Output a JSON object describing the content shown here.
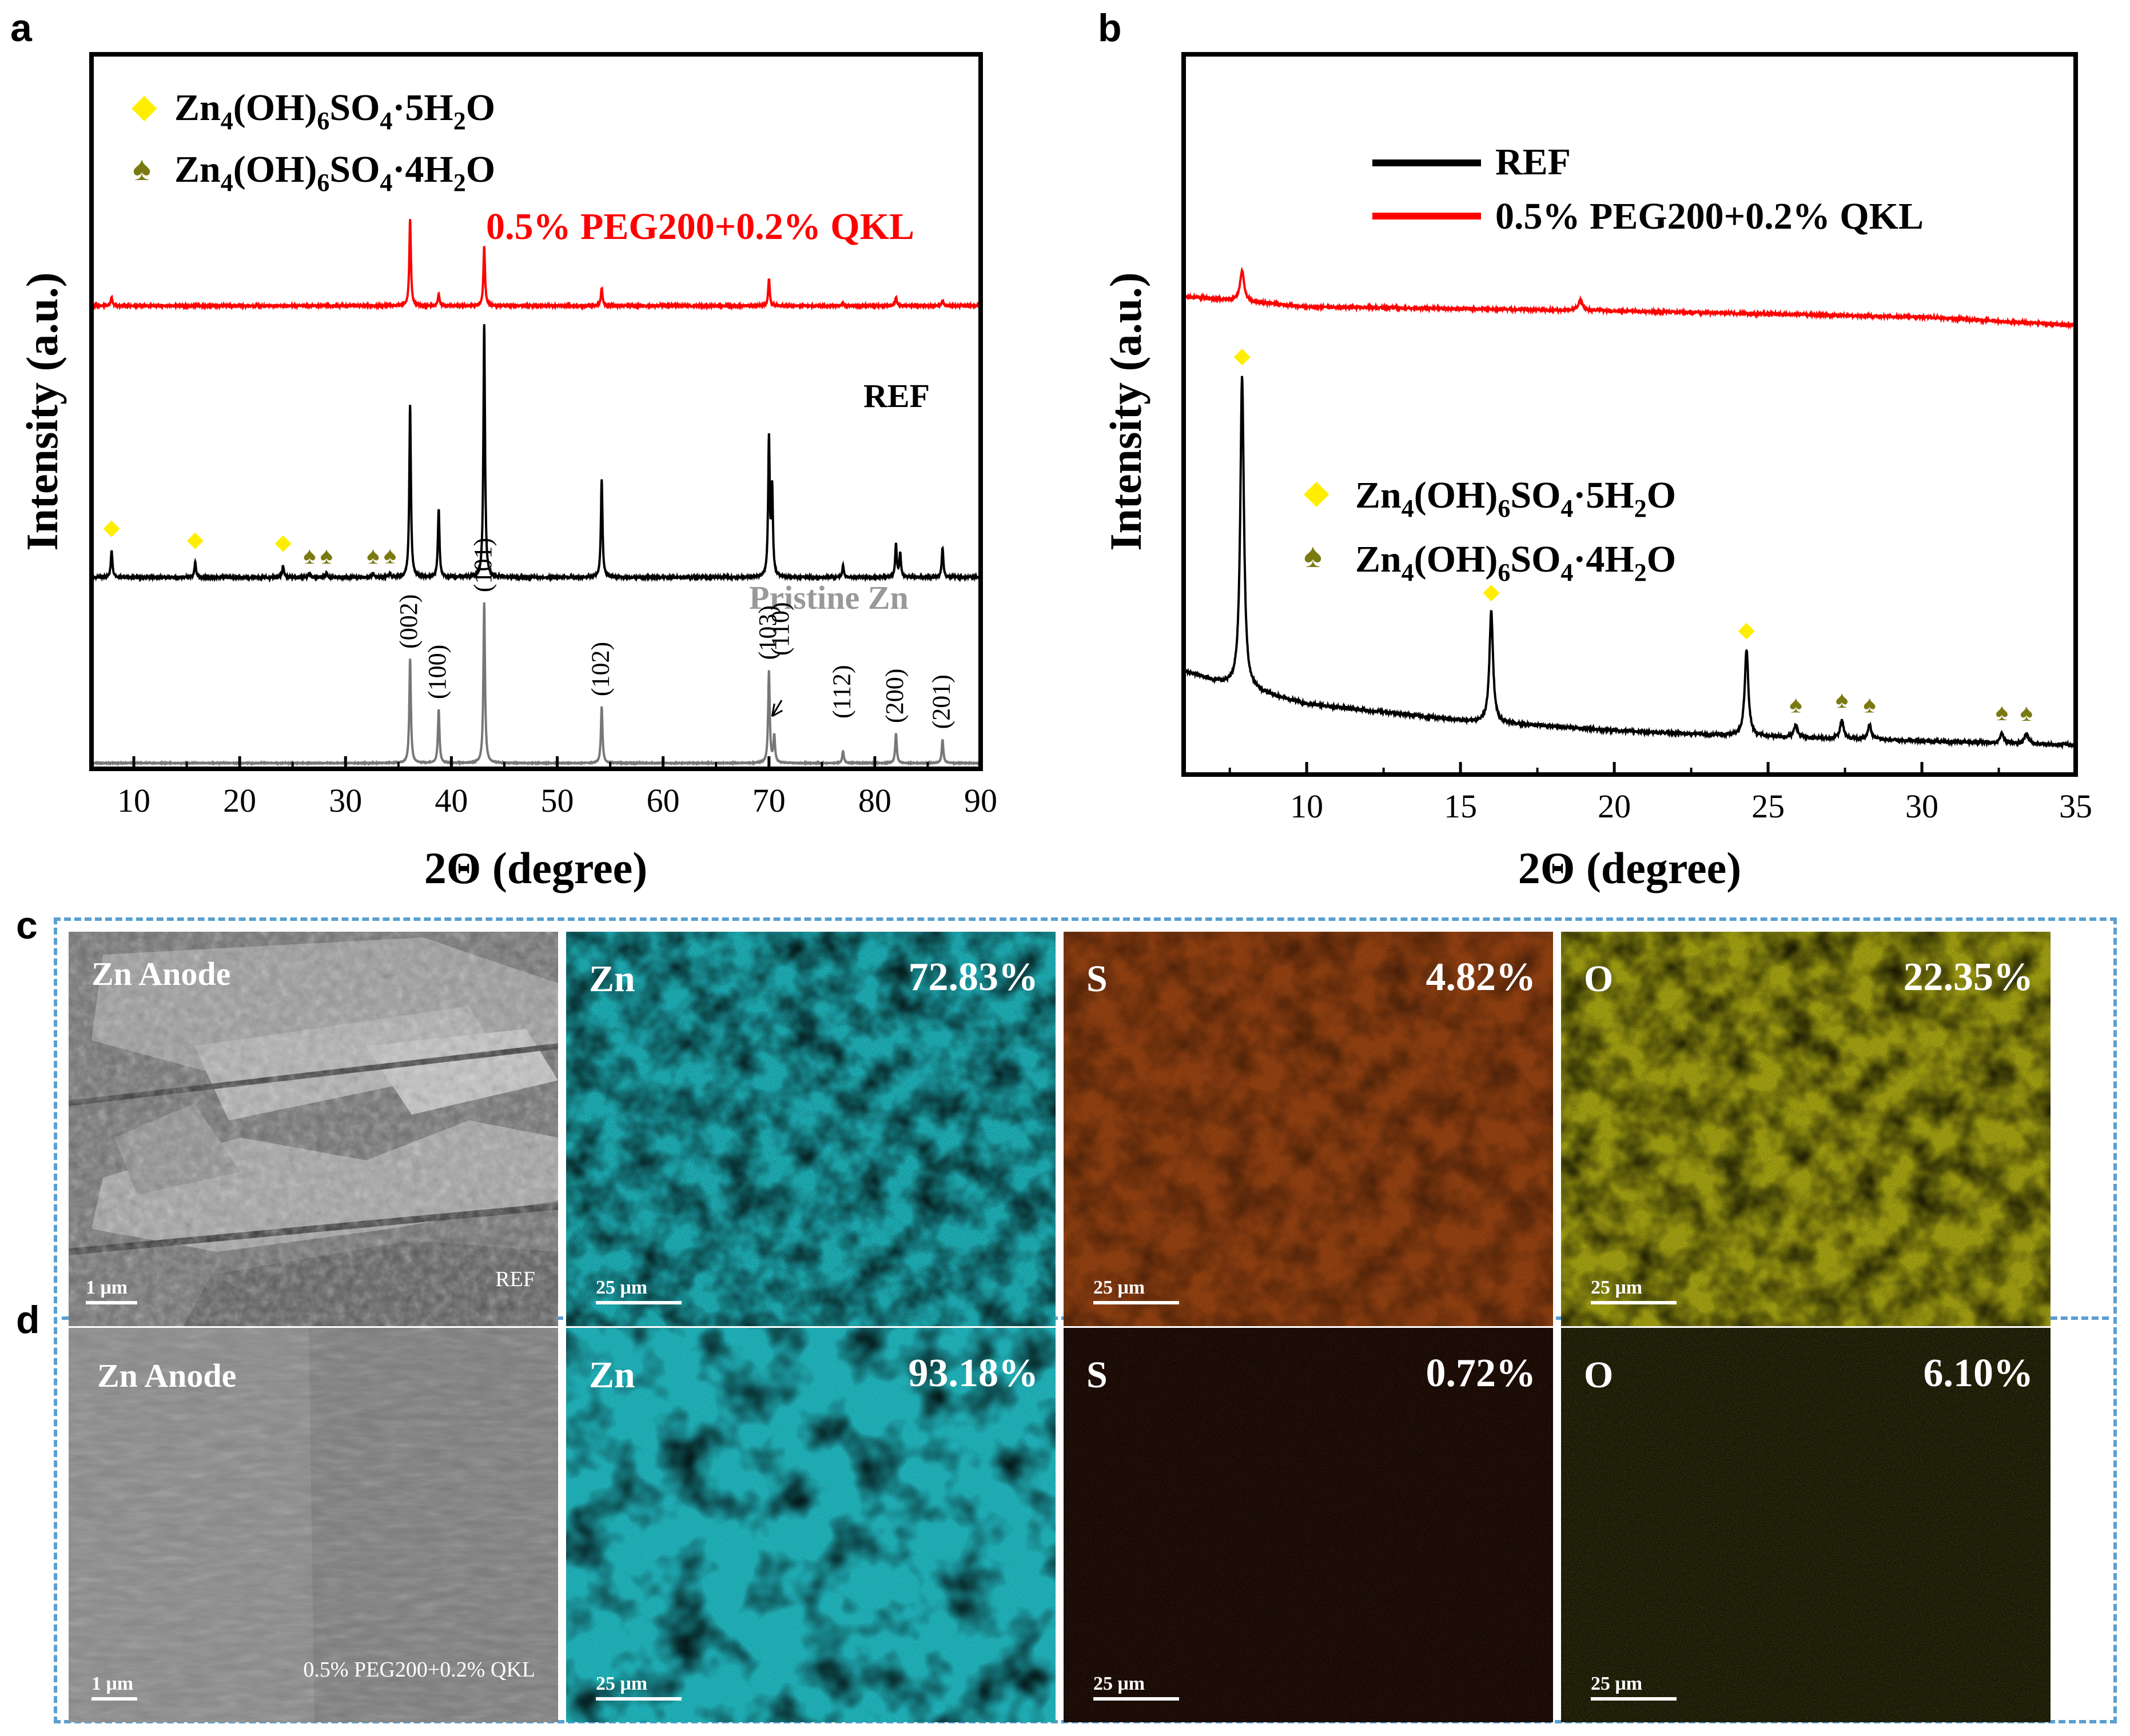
{
  "panel_labels": {
    "a": "a",
    "b": "b",
    "c": "c",
    "d": "d"
  },
  "colors": {
    "ref": "#000000",
    "treated": "#ff0000",
    "pristine": "#777777",
    "pentahydrate_marker": "#ffee00",
    "tetrahydrate_marker": "#7a7a12",
    "zn_map": "#1fb6bd",
    "s_map": "#b9531a",
    "o_map": "#c6c417",
    "frame": "#5a9fd1"
  },
  "chart_data": [
    {
      "id": "a",
      "type": "line",
      "xlabel": "2Θ (degree)",
      "ylabel": "Intensity (a.u.)",
      "xlim": [
        6,
        90
      ],
      "xticks": [
        10,
        20,
        30,
        40,
        50,
        60,
        70,
        80,
        90
      ],
      "legend": [
        {
          "symbol": "diamond",
          "name": "Zn4(OH)6SO4·5H2O",
          "parts": [
            "Zn",
            "4",
            "(OH)",
            "6",
            "SO",
            "4",
            "·5H",
            "2",
            "O"
          ]
        },
        {
          "symbol": "spade",
          "name": "Zn4(OH)6SO4·4H2O",
          "parts": [
            "Zn",
            "4",
            "(OH)",
            "6",
            "SO",
            "4",
            "·4H",
            "2",
            "O"
          ]
        }
      ],
      "series": [
        {
          "name": "0.5% PEG200+0.2% QKL",
          "label": "0.5% PEG200+0.2% QKL",
          "peaks": [
            [
              7.9,
              0.3
            ],
            [
              36.1,
              2.9
            ],
            [
              38.8,
              0.4
            ],
            [
              43.1,
              2.0
            ],
            [
              54.2,
              0.6
            ],
            [
              70.0,
              0.9
            ],
            [
              77.0,
              0.1
            ],
            [
              82.0,
              0.3
            ],
            [
              86.4,
              0.2
            ]
          ]
        },
        {
          "name": "REF",
          "label": "REF",
          "peaks": [
            [
              7.9,
              0.9
            ],
            [
              15.8,
              0.5
            ],
            [
              24.1,
              0.4
            ],
            [
              26.6,
              0.15
            ],
            [
              28.2,
              0.15
            ],
            [
              32.6,
              0.15
            ],
            [
              34.2,
              0.15
            ],
            [
              36.1,
              5.8
            ],
            [
              38.8,
              2.3
            ],
            [
              43.1,
              8.5
            ],
            [
              54.2,
              3.3
            ],
            [
              70.0,
              4.6
            ],
            [
              70.3,
              2.9
            ],
            [
              77.0,
              0.4
            ],
            [
              82.0,
              1.1
            ],
            [
              82.4,
              0.8
            ],
            [
              86.4,
              1.0
            ]
          ]
        },
        {
          "name": "Pristine Zn",
          "label": "Pristine Zn",
          "peaks": [
            [
              36.1,
              3.5
            ],
            [
              38.8,
              1.8
            ],
            [
              43.1,
              5.4
            ],
            [
              54.2,
              1.9
            ],
            [
              70.0,
              3.1
            ],
            [
              70.5,
              0.9
            ],
            [
              77.0,
              0.4
            ],
            [
              82.0,
              1.0
            ],
            [
              86.4,
              0.8
            ]
          ]
        }
      ],
      "pentahydrate_markers_2theta": [
        7.9,
        15.8,
        24.1
      ],
      "tetrahydrate_markers_2theta": [
        26.6,
        28.2,
        32.6,
        34.2
      ],
      "peak_indices": [
        {
          "label": "(002)",
          "x": 36.1
        },
        {
          "label": "(100)",
          "x": 38.8
        },
        {
          "label": "(101)",
          "x": 43.1
        },
        {
          "label": "(102)",
          "x": 54.2
        },
        {
          "label": "(103)",
          "x": 70.0
        },
        {
          "label": "(110)",
          "x": 71.2
        },
        {
          "label": "(112)",
          "x": 77.0
        },
        {
          "label": "(200)",
          "x": 82.0
        },
        {
          "label": "(201)",
          "x": 86.4
        }
      ]
    },
    {
      "id": "b",
      "type": "line",
      "xlabel": "2Θ (degree)",
      "ylabel": "Intensity (a.u.)",
      "xlim": [
        6,
        35
      ],
      "xticks": [
        10,
        15,
        20,
        25,
        30,
        35
      ],
      "legend_lines": [
        {
          "name": "REF"
        },
        {
          "name": "0.5% PEG200+0.2% QKL"
        }
      ],
      "legend_markers": [
        {
          "symbol": "diamond",
          "name": "Zn4(OH)6SO4·5H2O",
          "parts": [
            "Zn",
            "4",
            "(OH)",
            "6",
            "SO",
            "4",
            "·5H",
            "2",
            "O"
          ]
        },
        {
          "symbol": "spade",
          "name": "Zn4(OH)6SO4·4H2O",
          "parts": [
            "Zn",
            "4",
            "(OH)",
            "6",
            "SO",
            "4",
            "·4H",
            "2",
            "O"
          ]
        }
      ],
      "series": [
        {
          "name": "REF",
          "baseline": [
            [
              6,
              2.1
            ],
            [
              7,
              1.85
            ],
            [
              10,
              1.3
            ],
            [
              15,
              0.9
            ],
            [
              20,
              0.65
            ],
            [
              25,
              0.5
            ],
            [
              30,
              0.4
            ],
            [
              35,
              0.3
            ]
          ],
          "peaks": [
            [
              7.9,
              7.6
            ],
            [
              16.0,
              2.7
            ],
            [
              24.3,
              2.1
            ],
            [
              25.9,
              0.3
            ],
            [
              27.4,
              0.45
            ],
            [
              28.3,
              0.35
            ],
            [
              32.6,
              0.25
            ],
            [
              33.4,
              0.25
            ]
          ]
        },
        {
          "name": "0.5% PEG200+0.2% QKL",
          "baseline": [
            [
              6,
              11.2
            ],
            [
              10,
              10.95
            ],
            [
              20,
              10.85
            ],
            [
              30,
              10.7
            ],
            [
              35,
              10.5
            ]
          ],
          "peaks": [
            [
              7.9,
              0.75
            ],
            [
              18.9,
              0.25
            ]
          ]
        }
      ],
      "pentahydrate_markers_2theta": [
        7.9,
        16.0,
        24.3
      ],
      "tetrahydrate_markers_2theta": [
        25.9,
        27.4,
        28.3,
        32.6,
        33.4
      ]
    }
  ],
  "rows": [
    {
      "id": "c",
      "tiles": [
        {
          "kind": "sem",
          "label": "Zn Anode",
          "scale": "1 μm",
          "note": "REF"
        },
        {
          "kind": "map",
          "element": "Zn",
          "value": "72.83%",
          "scale": "25 μm"
        },
        {
          "kind": "map",
          "element": "S",
          "value": "4.82%",
          "scale": "25 μm"
        },
        {
          "kind": "map",
          "element": "O",
          "value": "22.35%",
          "scale": "25 μm"
        }
      ]
    },
    {
      "id": "d",
      "tiles": [
        {
          "kind": "sem",
          "label": "Zn Anode",
          "scale": "1 μm",
          "note": "0.5% PEG200+0.2% QKL"
        },
        {
          "kind": "map",
          "element": "Zn",
          "value": "93.18%",
          "scale": "25 μm"
        },
        {
          "kind": "map",
          "element": "S",
          "value": "0.72%",
          "scale": "25 μm"
        },
        {
          "kind": "map",
          "element": "O",
          "value": "6.10%",
          "scale": "25 μm"
        }
      ]
    }
  ]
}
